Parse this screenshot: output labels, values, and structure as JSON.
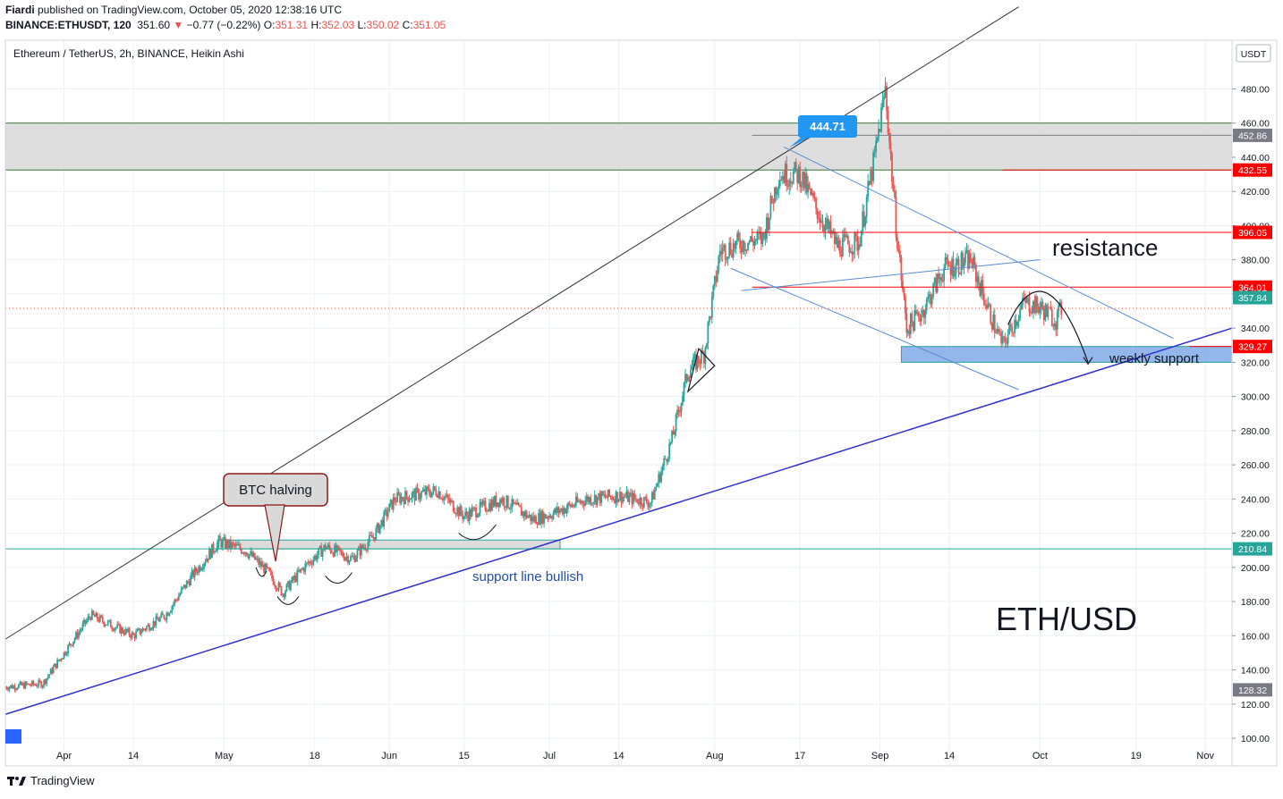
{
  "header": {
    "author": "Fiardi",
    "published_line": " published on TradingView.com, October 05, 2020 12:38:16 UTC",
    "symbol": "BINANCE:ETHUSDT, 120",
    "last": "351.60",
    "change": "−0.77 (−0.22%)",
    "o_label": "O:",
    "o": "351.31",
    "h_label": "H:",
    "h": "352.03",
    "l_label": "L:",
    "l": "350.02",
    "c_label": "C:",
    "c": "351.05"
  },
  "footer": {
    "brand": "TradingView"
  },
  "chart_data": {
    "type": "candlestick",
    "title": "Ethereum / TetherUS, 2h, BINANCE, Heikin Ashi",
    "currency_label": "USDT",
    "big_label": "ETH/USD",
    "ylim": [
      100,
      500
    ],
    "y_ticks": [
      100,
      120,
      140,
      160,
      180,
      200,
      220,
      240,
      260,
      280,
      300,
      320,
      340,
      360,
      380,
      400,
      420,
      440,
      460,
      480
    ],
    "x_tick_labels": [
      {
        "date": "2020-04-01",
        "label": "Apr"
      },
      {
        "date": "2020-04-14",
        "label": "14"
      },
      {
        "date": "2020-05-01",
        "label": "May"
      },
      {
        "date": "2020-05-18",
        "label": "18"
      },
      {
        "date": "2020-06-01",
        "label": "Jun"
      },
      {
        "date": "2020-06-15",
        "label": "15"
      },
      {
        "date": "2020-07-01",
        "label": "Jul"
      },
      {
        "date": "2020-07-14",
        "label": "14"
      },
      {
        "date": "2020-08-01",
        "label": "Aug"
      },
      {
        "date": "2020-08-17",
        "label": "17"
      },
      {
        "date": "2020-09-01",
        "label": "Sep"
      },
      {
        "date": "2020-09-14",
        "label": "14"
      },
      {
        "date": "2020-10-01",
        "label": "Oct"
      },
      {
        "date": "2020-10-19",
        "label": "19"
      },
      {
        "date": "2020-11-01",
        "label": "Nov"
      }
    ],
    "x_range": [
      "2020-03-21",
      "2020-11-06"
    ],
    "price_path": [
      [
        "2020-03-21",
        130
      ],
      [
        "2020-03-28",
        132
      ],
      [
        "2020-04-06",
        172
      ],
      [
        "2020-04-14",
        160
      ],
      [
        "2020-04-20",
        172
      ],
      [
        "2020-04-25",
        195
      ],
      [
        "2020-04-30",
        215
      ],
      [
        "2020-05-05",
        210
      ],
      [
        "2020-05-09",
        198
      ],
      [
        "2020-05-12",
        185
      ],
      [
        "2020-05-16",
        200
      ],
      [
        "2020-05-20",
        212
      ],
      [
        "2020-05-25",
        205
      ],
      [
        "2020-05-29",
        218
      ],
      [
        "2020-06-02",
        240
      ],
      [
        "2020-06-10",
        245
      ],
      [
        "2020-06-15",
        230
      ],
      [
        "2020-06-22",
        240
      ],
      [
        "2020-06-28",
        228
      ],
      [
        "2020-07-02",
        232
      ],
      [
        "2020-07-08",
        240
      ],
      [
        "2020-07-14",
        242
      ],
      [
        "2020-07-20",
        238
      ],
      [
        "2020-07-24",
        275
      ],
      [
        "2020-07-27",
        315
      ],
      [
        "2020-07-30",
        325
      ],
      [
        "2020-08-02",
        385
      ],
      [
        "2020-08-06",
        390
      ],
      [
        "2020-08-10",
        392
      ],
      [
        "2020-08-13",
        430
      ],
      [
        "2020-08-17",
        430
      ],
      [
        "2020-08-20",
        410
      ],
      [
        "2020-08-24",
        388
      ],
      [
        "2020-08-28",
        390
      ],
      [
        "2020-08-31",
        440
      ],
      [
        "2020-09-02",
        480
      ],
      [
        "2020-09-04",
        400
      ],
      [
        "2020-09-06",
        340
      ],
      [
        "2020-09-09",
        350
      ],
      [
        "2020-09-13",
        375
      ],
      [
        "2020-09-18",
        380
      ],
      [
        "2020-09-22",
        345
      ],
      [
        "2020-09-24",
        330
      ],
      [
        "2020-09-28",
        355
      ],
      [
        "2020-10-01",
        352
      ],
      [
        "2020-10-04",
        345
      ],
      [
        "2020-10-05",
        351
      ]
    ],
    "price_lines": [
      {
        "value": 452.86,
        "label": "452.86",
        "color": "#787b86",
        "style": "line"
      },
      {
        "value": 432.55,
        "label": "432.55",
        "color": "#ff0000",
        "style": "line"
      },
      {
        "value": 396.05,
        "label": "396.05",
        "color": "#ff0000",
        "style": "line"
      },
      {
        "value": 364.01,
        "label": "364.01",
        "color": "#ff0000",
        "style": "line"
      },
      {
        "value": 357.84,
        "label": "357.84",
        "color": "#26a69a",
        "style": "none"
      },
      {
        "value": 351.6,
        "label": "",
        "color": "#ef5350",
        "style": "dotted"
      },
      {
        "value": 329.27,
        "label": "329.27",
        "color": "#ff0000",
        "style": "short"
      },
      {
        "value": 210.84,
        "label": "210.84",
        "color": "#26a69a",
        "style": "line"
      },
      {
        "value": 128.32,
        "label": "128.32",
        "color": "#787b86",
        "style": "none"
      }
    ],
    "zones": [
      {
        "name": "resistance-zone",
        "y1": 432.55,
        "y2": 460,
        "x1": "2020-03-21",
        "x2": "2020-11-06",
        "fill": "#d8d8d8",
        "stroke": "#2e7d32"
      },
      {
        "name": "weekly-support-zone",
        "y1": 320,
        "y2": 329.27,
        "x1": "2020-09-05",
        "x2": "2020-11-06",
        "fill": "#80a9e8",
        "stroke": "#26a69a"
      },
      {
        "name": "btc-halving-zone",
        "y1": 210.84,
        "y2": 216,
        "x1": "2020-04-30",
        "x2": "2020-07-03",
        "fill": "#d6d6d6",
        "stroke": "#26a69a"
      }
    ],
    "trendlines": [
      {
        "name": "upper-channel-line",
        "from": [
          "2020-03-21",
          158
        ],
        "to": [
          "2020-09-27",
          528
        ],
        "color": "#333333"
      },
      {
        "name": "support-trendline",
        "from": [
          "2020-03-21",
          114
        ],
        "to": [
          "2020-11-06",
          340
        ],
        "color": "#3030d0"
      },
      {
        "name": "descending-upper-line",
        "from": [
          "2020-08-14",
          446
        ],
        "to": [
          "2020-10-26",
          334
        ],
        "color": "#5b8bd8"
      },
      {
        "name": "descending-lower-line",
        "from": [
          "2020-08-04",
          375
        ],
        "to": [
          "2020-09-27",
          304
        ],
        "color": "#5b8bd8"
      },
      {
        "name": "rising-mid-line",
        "from": [
          "2020-08-06",
          362
        ],
        "to": [
          "2020-10-01",
          380
        ],
        "color": "#5b8bd8"
      }
    ],
    "annotations": [
      {
        "text": "444.71",
        "type": "price-callout",
        "date": "2020-08-15",
        "value": 444.71
      },
      {
        "text": "BTC halving",
        "type": "callout",
        "date": "2020-05-11",
        "value": 230
      },
      {
        "text": "support line bullish",
        "type": "label",
        "date": "2020-06-15",
        "value": 200
      },
      {
        "text": "resistance",
        "type": "label",
        "date": "2020-10-09",
        "value": 385
      },
      {
        "text": "weekly support",
        "type": "label",
        "date": "2020-10-12",
        "value": 322
      }
    ]
  }
}
